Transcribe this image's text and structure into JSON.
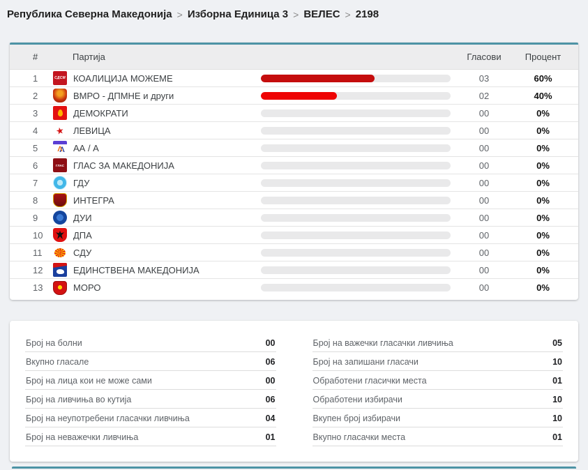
{
  "breadcrumb": {
    "separator": ">",
    "items": [
      "Република Северна Македонија",
      "Изборна Единица 3",
      "ВЕЛЕС",
      "2198"
    ]
  },
  "results_table": {
    "columns": {
      "rank": "#",
      "party": "Партија",
      "votes": "Гласови",
      "percent": "Процент"
    },
    "rows": [
      {
        "rank": "1",
        "party": "КОАЛИЦИЈА МОЖЕМЕ",
        "icon": "logo-sdsm",
        "icon_text": "СДСМ",
        "votes": "03",
        "percent": "60%",
        "bar_pct": 60,
        "bar_color": "#c50d0d"
      },
      {
        "rank": "2",
        "party": "ВМРО - ДПМНЕ и други",
        "icon": "logo-vmro",
        "icon_text": "",
        "votes": "02",
        "percent": "40%",
        "bar_pct": 40,
        "bar_color": "#ee0404"
      },
      {
        "rank": "3",
        "party": "ДЕМОКРАТИ",
        "icon": "logo-demokrati",
        "icon_text": "",
        "votes": "00",
        "percent": "0%",
        "bar_pct": 0,
        "bar_color": null
      },
      {
        "rank": "4",
        "party": "ЛЕВИЦА",
        "icon": "logo-levica",
        "icon_text": "",
        "votes": "00",
        "percent": "0%",
        "bar_pct": 0,
        "bar_color": null
      },
      {
        "rank": "5",
        "party": "АА / А",
        "icon": "logo-aa",
        "icon_text": "",
        "votes": "00",
        "percent": "0%",
        "bar_pct": 0,
        "bar_color": null
      },
      {
        "rank": "6",
        "party": "ГЛАС ЗА МАКЕДОНИЈА",
        "icon": "logo-glas",
        "icon_text": "ГЛАС",
        "votes": "00",
        "percent": "0%",
        "bar_pct": 0,
        "bar_color": null
      },
      {
        "rank": "7",
        "party": "ГДУ",
        "icon": "logo-gdu",
        "icon_text": "",
        "votes": "00",
        "percent": "0%",
        "bar_pct": 0,
        "bar_color": null
      },
      {
        "rank": "8",
        "party": "ИНТЕГРА",
        "icon": "logo-integra",
        "icon_text": "",
        "votes": "00",
        "percent": "0%",
        "bar_pct": 0,
        "bar_color": null
      },
      {
        "rank": "9",
        "party": "ДУИ",
        "icon": "logo-dui",
        "icon_text": "",
        "votes": "00",
        "percent": "0%",
        "bar_pct": 0,
        "bar_color": null
      },
      {
        "rank": "10",
        "party": "ДПА",
        "icon": "logo-dpa",
        "icon_text": "",
        "votes": "00",
        "percent": "0%",
        "bar_pct": 0,
        "bar_color": null
      },
      {
        "rank": "11",
        "party": "СДУ",
        "icon": "logo-sdu",
        "icon_text": "",
        "votes": "00",
        "percent": "0%",
        "bar_pct": 0,
        "bar_color": null
      },
      {
        "rank": "12",
        "party": "ЕДИНСТВЕНА МАКЕДОНИЈА",
        "icon": "logo-em",
        "icon_text": "",
        "votes": "00",
        "percent": "0%",
        "bar_pct": 0,
        "bar_color": null
      },
      {
        "rank": "13",
        "party": "МОРО",
        "icon": "logo-moro",
        "icon_text": "",
        "votes": "00",
        "percent": "0%",
        "bar_pct": 0,
        "bar_color": null
      }
    ]
  },
  "stats": {
    "left": [
      {
        "label": "Број на болни",
        "value": "00"
      },
      {
        "label": "Вкупно гласале",
        "value": "06"
      },
      {
        "label": "Број на лица кои не може сами",
        "value": "00"
      },
      {
        "label": "Број на ливчиња во кутија",
        "value": "06"
      },
      {
        "label": "Број на неупотребени гласачки ливчиња",
        "value": "04"
      },
      {
        "label": "Број на неважечки ливчиња",
        "value": "01"
      }
    ],
    "right": [
      {
        "label": "Број на важечки гласачки ливчиња",
        "value": "05"
      },
      {
        "label": "Број на запишани гласачи",
        "value": "10"
      },
      {
        "label": "Обработени гласички места",
        "value": "01"
      },
      {
        "label": "Обработени избирачи",
        "value": "10"
      },
      {
        "label": "Вкупен број избирачи",
        "value": "10"
      },
      {
        "label": "Вкупно гласачки места",
        "value": "01"
      }
    ]
  },
  "colors": {
    "accent_teal": "#4d93a5",
    "bar_track": "#e9e9ea",
    "bar_red_dark": "#c50d0d",
    "bar_red_bright": "#ee0404",
    "page_bg": "#eff1f4"
  }
}
